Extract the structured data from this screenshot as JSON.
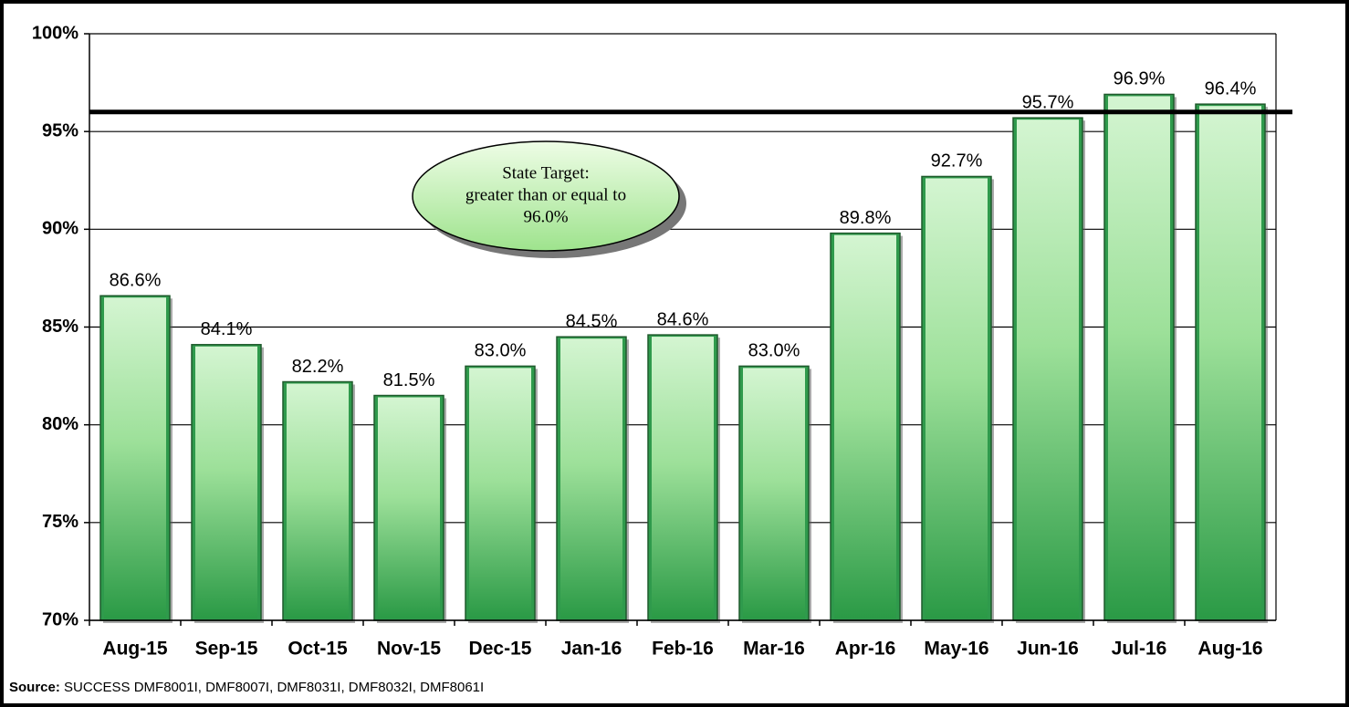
{
  "chart_data": {
    "type": "bar",
    "categories": [
      "Aug-15",
      "Sep-15",
      "Oct-15",
      "Nov-15",
      "Dec-15",
      "Jan-16",
      "Feb-16",
      "Mar-16",
      "Apr-16",
      "May-16",
      "Jun-16",
      "Jul-16",
      "Aug-16"
    ],
    "values": [
      86.6,
      84.1,
      82.2,
      81.5,
      83.0,
      84.5,
      84.6,
      83.0,
      89.8,
      92.7,
      95.7,
      96.9,
      96.4
    ],
    "value_labels": [
      "86.6%",
      "84.1%",
      "82.2%",
      "81.5%",
      "83.0%",
      "84.5%",
      "84.6%",
      "83.0%",
      "89.8%",
      "92.7%",
      "95.7%",
      "96.9%",
      "96.4%"
    ],
    "color": "#2f9a4c",
    "ylim": [
      70,
      100
    ],
    "yticks": [
      {
        "value": 70,
        "label": "70%"
      },
      {
        "value": 75,
        "label": "75%"
      },
      {
        "value": 80,
        "label": "80%"
      },
      {
        "value": 85,
        "label": "85%"
      },
      {
        "value": 90,
        "label": "90%"
      },
      {
        "value": 95,
        "label": "95%"
      },
      {
        "value": 100,
        "label": "100%"
      }
    ],
    "grid": true,
    "target": 96.0,
    "annotation": [
      "State Target:",
      "greater than or equal to",
      "96.0%"
    ],
    "source_label": "Source:",
    "source": "SUCCESS DMF8001I, DMF8007I, DMF8031I, DMF8032I, DMF8061I"
  }
}
